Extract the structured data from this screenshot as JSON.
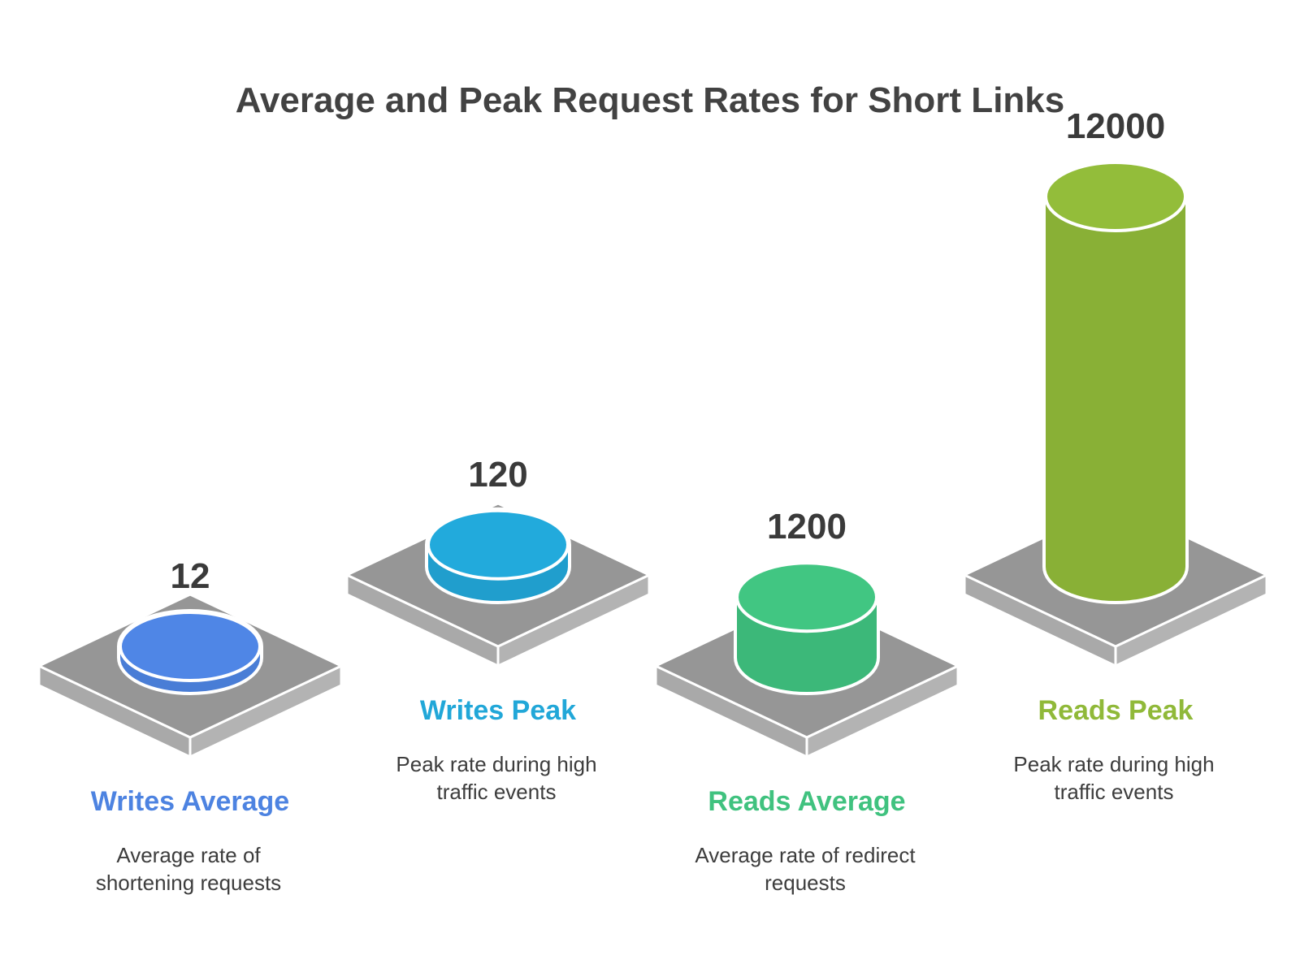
{
  "chart_data": {
    "type": "bar",
    "title": "Average and Peak Request Rates for Short Links",
    "categories": [
      "Writes Average",
      "Writes Peak",
      "Reads Average",
      "Reads Peak"
    ],
    "values": [
      12,
      120,
      1200,
      12000
    ],
    "value_labels": [
      "12",
      "120",
      "1200",
      "12000"
    ],
    "descriptions": [
      [
        "Average rate of",
        "shortening requests"
      ],
      [
        "Peak rate during high",
        "traffic events"
      ],
      [
        "Average rate of redirect",
        "requests"
      ],
      [
        "Peak rate during high",
        "traffic events"
      ]
    ],
    "colors": [
      "#4f86e6",
      "#22aadc",
      "#41c682",
      "#93bd3a"
    ],
    "scale": "log"
  }
}
